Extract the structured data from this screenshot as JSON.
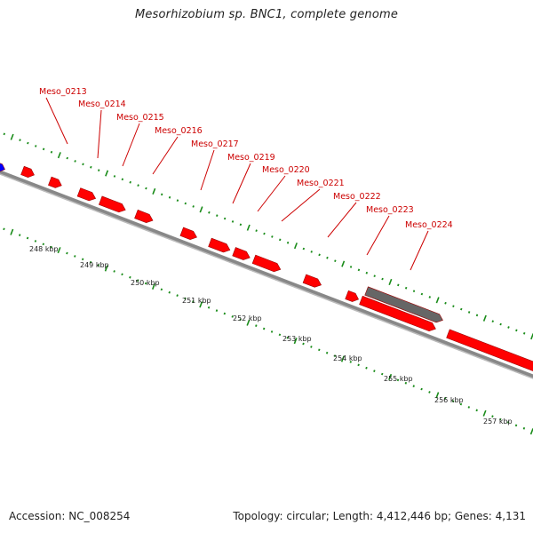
{
  "header": {
    "title": "Mesorhizobium sp. BNC1, complete genome"
  },
  "footer": {
    "accession": "Accession: NC_008254",
    "info": "Topology: circular; Length: 4,412,446 bp; Genes: 4,131"
  },
  "colors": {
    "forward_gene": "#ff0000",
    "highlight_gene": "#666666",
    "other_gene": "#0000ff",
    "backbone": "#888888",
    "tick": "#1a8c1a",
    "gene_label": "#cc0000",
    "leader": "#cc0000"
  },
  "gene_labels": [
    "Meso_0213",
    "Meso_0214",
    "Meso_0215",
    "Meso_0216",
    "Meso_0217",
    "Meso_0219",
    "Meso_0220",
    "Meso_0221",
    "Meso_0222",
    "Meso_0223",
    "Meso_0224"
  ],
  "kbp_labels": [
    "248 kbp",
    "249 kbp",
    "250 kbp",
    "251 kbp",
    "252 kbp",
    "253 kbp",
    "254 kbp",
    "255 kbp",
    "256 kbp",
    "257 kbp"
  ]
}
